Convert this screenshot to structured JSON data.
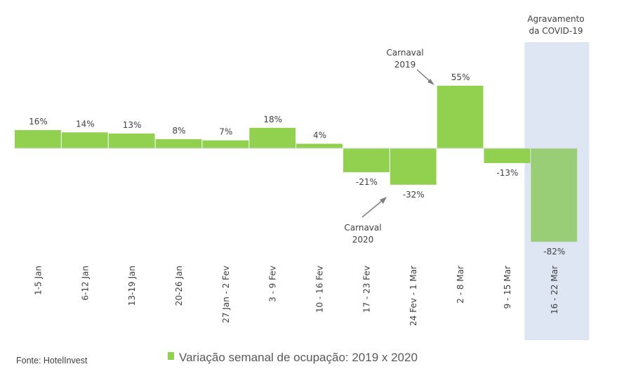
{
  "chart_data": {
    "type": "bar",
    "categories": [
      "1-5 Jan",
      "6-12 Jan",
      "13-19 Jan",
      "20-26 Jan",
      "27 Jan - 2 Fev",
      "3 - 9 Fev",
      "10 - 16 Fev",
      "17 - 23 Fev",
      "24 Fev - 1 Mar",
      "2 - 8 Mar",
      "9 - 15 Mar",
      "16 - 22 Mar"
    ],
    "series": [
      {
        "name": "Variação semanal de ocupação: 2019 x 2020",
        "values": [
          16,
          14,
          13,
          8,
          7,
          18,
          4,
          -21,
          -32,
          55,
          -13,
          -82
        ],
        "color": "#92d050"
      }
    ],
    "data_labels": [
      "16%",
      "14%",
      "13%",
      "8%",
      "7%",
      "18%",
      "4%",
      "-21%",
      "-32%",
      "55%",
      "-13%",
      "-82%"
    ],
    "xlabel": "",
    "ylabel": "",
    "grid": false,
    "legend": "bottom",
    "annotations": [
      {
        "text_lines": [
          "Carnaval",
          "2019"
        ],
        "category": "2 - 8 Mar"
      },
      {
        "text_lines": [
          "Carnaval",
          "2020"
        ],
        "category": "24 Fev - 1 Mar"
      },
      {
        "text_lines": [
          "Agravamento",
          "da COVID-19"
        ],
        "category": "16 - 22 Mar",
        "highlight_color": "#dfe6f3"
      }
    ],
    "source": "Fonte: HotelInvest"
  }
}
